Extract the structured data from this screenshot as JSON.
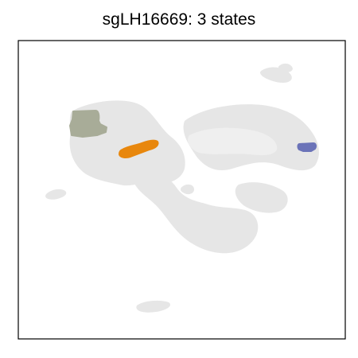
{
  "chart_data": {
    "type": "scatter",
    "title": "sgLH16669: 3 states",
    "xlabel": "",
    "ylabel": "",
    "grid": false,
    "axes_ticks": false,
    "background_color": "#e6e6e6",
    "series": [
      {
        "color": "#a8ac98",
        "highlighted_cluster": 1
      },
      {
        "color": "#e8870d",
        "highlighted_cluster": 2
      },
      {
        "color": "#6b73b8",
        "highlighted_cluster": 3
      }
    ]
  }
}
